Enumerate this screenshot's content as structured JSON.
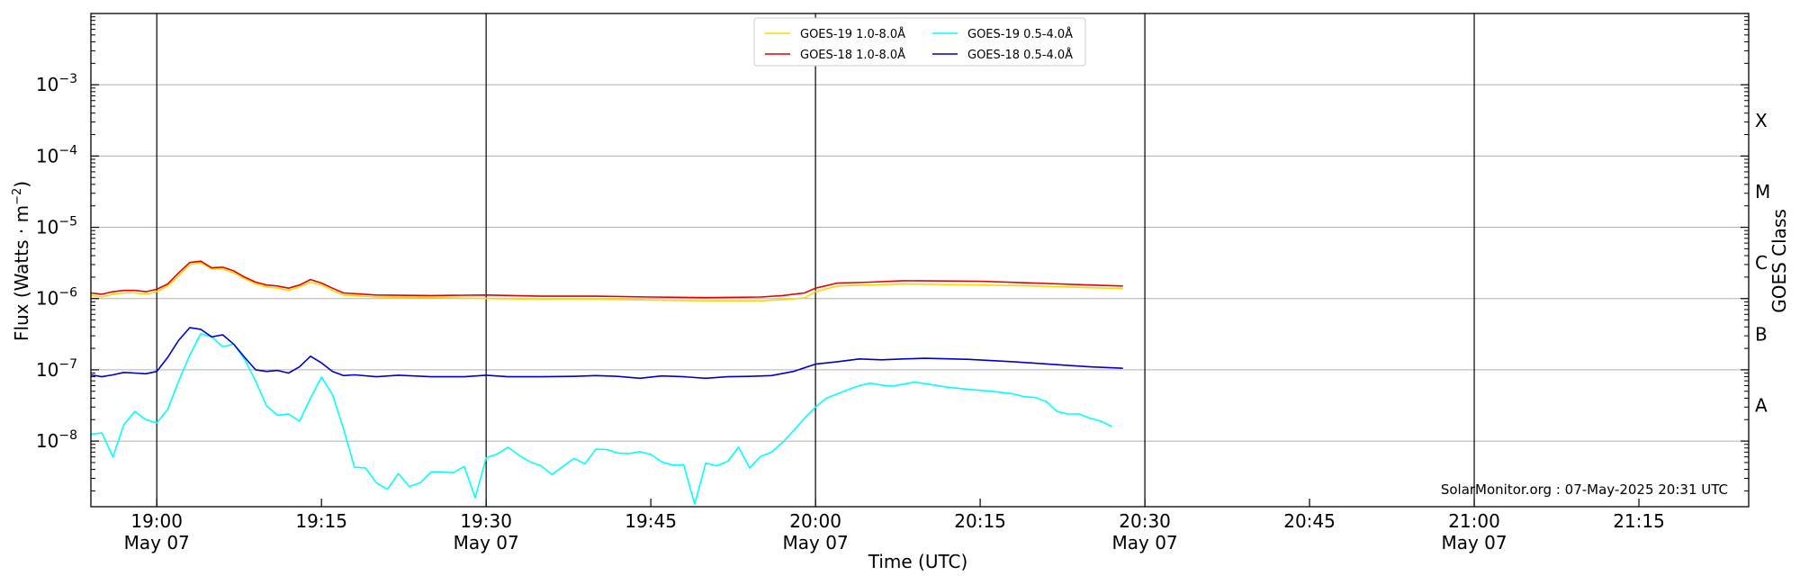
{
  "chart_data": {
    "type": "line",
    "xlabel": "Time (UTC)",
    "ylabel": "Flux (Watts · m",
    "ylabel_sup": "−2",
    "ylabel_close": ")",
    "right_label": "GOES Class",
    "xlim": [
      "18:54",
      "21:25"
    ],
    "ylim": [
      1.2e-09,
      0.01
    ],
    "yscale": "log",
    "grid": "horizontal at decades",
    "legend_position": "top-center",
    "credit": "SolarMonitor.org : 07-May-2025 20:31 UTC",
    "x_ticks": [
      {
        "t": "19:00",
        "time": "19:00",
        "date": "May 07"
      },
      {
        "t": "19:15",
        "time": "19:15",
        "date": ""
      },
      {
        "t": "19:30",
        "time": "19:30",
        "date": "May 07"
      },
      {
        "t": "19:45",
        "time": "19:45",
        "date": ""
      },
      {
        "t": "20:00",
        "time": "20:00",
        "date": "May 07"
      },
      {
        "t": "20:15",
        "time": "20:15",
        "date": ""
      },
      {
        "t": "20:30",
        "time": "20:30",
        "date": "May 07"
      },
      {
        "t": "20:45",
        "time": "20:45",
        "date": ""
      },
      {
        "t": "21:00",
        "time": "21:00",
        "date": "May 07"
      },
      {
        "t": "21:15",
        "time": "21:15",
        "date": ""
      }
    ],
    "vlines": [
      "19:00",
      "19:30",
      "20:00",
      "20:30",
      "21:00"
    ],
    "y_ticks": [
      {
        "value": 1e-08,
        "base": "10",
        "exp": "−8"
      },
      {
        "value": 1e-07,
        "base": "10",
        "exp": "−7"
      },
      {
        "value": 1e-06,
        "base": "10",
        "exp": "−6"
      },
      {
        "value": 1e-05,
        "base": "10",
        "exp": "−5"
      },
      {
        "value": 0.0001,
        "base": "10",
        "exp": "−4"
      },
      {
        "value": 0.001,
        "base": "10",
        "exp": "−3"
      }
    ],
    "goes_classes": [
      {
        "label": "A",
        "value": 3.16e-08
      },
      {
        "label": "B",
        "value": 3.16e-07
      },
      {
        "label": "C",
        "value": 3.16e-06
      },
      {
        "label": "M",
        "value": 3.16e-05
      },
      {
        "label": "X",
        "value": 0.000316
      }
    ],
    "series": [
      {
        "name": "GOES-19 1.0-8.0Å",
        "color": "#ffd700",
        "x": [
          "18:54",
          "18:55",
          "18:56",
          "18:57",
          "18:58",
          "18:59",
          "19:00",
          "19:01",
          "19:02",
          "19:03",
          "19:04",
          "19:05",
          "19:06",
          "19:07",
          "19:08",
          "19:09",
          "19:10",
          "19:11",
          "19:12",
          "19:13",
          "19:14",
          "19:15",
          "19:16",
          "19:17",
          "19:20",
          "19:25",
          "19:30",
          "19:35",
          "19:40",
          "19:45",
          "19:50",
          "19:55",
          "19:57",
          "19:59",
          "20:00",
          "20:02",
          "20:05",
          "20:08",
          "20:15",
          "20:20",
          "20:25",
          "20:28"
        ],
        "y": [
          1.1e-06,
          1.05e-06,
          1.15e-06,
          1.2e-06,
          1.2e-06,
          1.15e-06,
          1.25e-06,
          1.5e-06,
          2.1e-06,
          3e-06,
          3.2e-06,
          2.6e-06,
          2.6e-06,
          2.3e-06,
          1.9e-06,
          1.6e-06,
          1.45e-06,
          1.4e-06,
          1.3e-06,
          1.45e-06,
          1.7e-06,
          1.55e-06,
          1.3e-06,
          1.12e-06,
          1.05e-06,
          1.03e-06,
          1e-06,
          9.8e-07,
          9.8e-07,
          9.5e-07,
          9.3e-07,
          9.3e-07,
          9.6e-07,
          1.02e-06,
          1.25e-06,
          1.5e-06,
          1.55e-06,
          1.6e-06,
          1.55e-06,
          1.5e-06,
          1.42e-06,
          1.38e-06
        ]
      },
      {
        "name": "GOES-18 1.0-8.0Å",
        "color": "#e60000",
        "x": [
          "18:54",
          "18:55",
          "18:56",
          "18:57",
          "18:58",
          "18:59",
          "19:00",
          "19:01",
          "19:02",
          "19:03",
          "19:04",
          "19:05",
          "19:06",
          "19:07",
          "19:08",
          "19:09",
          "19:10",
          "19:11",
          "19:12",
          "19:13",
          "19:14",
          "19:15",
          "19:16",
          "19:17",
          "19:20",
          "19:25",
          "19:30",
          "19:35",
          "19:40",
          "19:45",
          "19:50",
          "19:55",
          "19:57",
          "19:59",
          "20:00",
          "20:02",
          "20:05",
          "20:08",
          "20:15",
          "20:20",
          "20:25",
          "20:28"
        ],
        "y": [
          1.2e-06,
          1.15e-06,
          1.25e-06,
          1.3e-06,
          1.3e-06,
          1.25e-06,
          1.35e-06,
          1.6e-06,
          2.3e-06,
          3.2e-06,
          3.35e-06,
          2.7e-06,
          2.75e-06,
          2.45e-06,
          2e-06,
          1.7e-06,
          1.55e-06,
          1.5e-06,
          1.4e-06,
          1.55e-06,
          1.85e-06,
          1.65e-06,
          1.4e-06,
          1.2e-06,
          1.12e-06,
          1.1e-06,
          1.12e-06,
          1.08e-06,
          1.08e-06,
          1.05e-06,
          1.03e-06,
          1.05e-06,
          1.1e-06,
          1.2e-06,
          1.4e-06,
          1.65e-06,
          1.7e-06,
          1.78e-06,
          1.75e-06,
          1.65e-06,
          1.55e-06,
          1.5e-06
        ]
      },
      {
        "name": "GOES-19 0.5-4.0Å",
        "color": "#00ffff",
        "x": [
          "18:54",
          "18:55",
          "18:56",
          "18:57",
          "18:58",
          "18:59",
          "19:00",
          "19:01",
          "19:02",
          "19:03",
          "19:04",
          "19:05",
          "19:06",
          "19:07",
          "19:08",
          "19:09",
          "19:10",
          "19:11",
          "19:12",
          "19:13",
          "19:14",
          "19:15",
          "19:16",
          "19:17",
          "19:18",
          "19:19",
          "19:20",
          "19:21",
          "19:22",
          "19:23",
          "19:24",
          "19:25",
          "19:26",
          "19:27",
          "19:28",
          "19:29",
          "19:30",
          "19:31",
          "19:32",
          "19:33",
          "19:34",
          "19:35",
          "19:36",
          "19:37",
          "19:38",
          "19:39",
          "19:40",
          "19:41",
          "19:42",
          "19:43",
          "19:44",
          "19:45",
          "19:46",
          "19:47",
          "19:48",
          "19:49",
          "19:50",
          "19:51",
          "19:52",
          "19:53",
          "19:54",
          "19:55",
          "19:56",
          "19:57",
          "19:58",
          "19:59",
          "20:00",
          "20:01",
          "20:02",
          "20:03",
          "20:04",
          "20:05",
          "20:06",
          "20:07",
          "20:08",
          "20:09",
          "20:10",
          "20:12",
          "20:14",
          "20:16",
          "20:18",
          "20:19",
          "20:20",
          "20:21",
          "20:22",
          "20:23",
          "20:24",
          "20:25",
          "20:26",
          "20:27"
        ],
        "y": [
          1.25e-08,
          1.3e-08,
          6e-09,
          1.7e-08,
          2.6e-08,
          2e-08,
          1.8e-08,
          2.8e-08,
          7e-08,
          1.6e-07,
          3.2e-07,
          2.9e-07,
          2.1e-07,
          2.3e-07,
          1.4e-07,
          7e-08,
          3.1e-08,
          2.3e-08,
          2.4e-08,
          1.9e-08,
          4e-08,
          7.9e-08,
          4.5e-08,
          1.5e-08,
          4.3e-09,
          4.2e-09,
          2.6e-09,
          2.1e-09,
          3.5e-09,
          2.3e-09,
          2.6e-09,
          3.7e-09,
          3.7e-09,
          3.6e-09,
          4.4e-09,
          1.6e-09,
          5.8e-09,
          6.6e-09,
          8.2e-09,
          6.3e-09,
          5.1e-09,
          4.5e-09,
          3.4e-09,
          4.4e-09,
          5.7e-09,
          4.8e-09,
          7.7e-09,
          7.6e-09,
          6.8e-09,
          6.7e-09,
          7.1e-09,
          6.5e-09,
          5.1e-09,
          4.6e-09,
          4.6e-09,
          1.3e-09,
          4.9e-09,
          4.5e-09,
          5.2e-09,
          8.2e-09,
          4.2e-09,
          6.1e-09,
          7e-09,
          9.6e-09,
          1.4e-08,
          2.1e-08,
          3e-08,
          4e-08,
          4.6e-08,
          5.3e-08,
          6e-08,
          6.5e-08,
          6.1e-08,
          5.9e-08,
          6.3e-08,
          6.7e-08,
          6.4e-08,
          5.7e-08,
          5.3e-08,
          5e-08,
          4.6e-08,
          4.2e-08,
          4.1e-08,
          3.6e-08,
          2.6e-08,
          2.4e-08,
          2.4e-08,
          2.1e-08,
          1.9e-08,
          1.6e-08
        ]
      },
      {
        "name": "GOES-18 0.5-4.0Å",
        "color": "#0000cc",
        "x": [
          "18:54",
          "18:55",
          "18:56",
          "18:57",
          "18:58",
          "18:59",
          "19:00",
          "19:01",
          "19:02",
          "19:03",
          "19:04",
          "19:05",
          "19:06",
          "19:07",
          "19:08",
          "19:09",
          "19:10",
          "19:11",
          "19:12",
          "19:13",
          "19:14",
          "19:15",
          "19:16",
          "19:17",
          "19:18",
          "19:20",
          "19:22",
          "19:25",
          "19:28",
          "19:30",
          "19:32",
          "19:35",
          "19:38",
          "19:40",
          "19:42",
          "19:44",
          "19:46",
          "19:48",
          "19:50",
          "19:52",
          "19:54",
          "19:56",
          "19:58",
          "20:00",
          "20:02",
          "20:04",
          "20:06",
          "20:08",
          "20:10",
          "20:14",
          "20:18",
          "20:22",
          "20:25",
          "20:28"
        ],
        "y": [
          8.5e-08,
          8e-08,
          8.5e-08,
          9.2e-08,
          9e-08,
          8.8e-08,
          9.5e-08,
          1.5e-07,
          2.6e-07,
          3.9e-07,
          3.7e-07,
          2.9e-07,
          3.1e-07,
          2.3e-07,
          1.5e-07,
          1e-07,
          9.5e-08,
          9.8e-08,
          9e-08,
          1.1e-07,
          1.55e-07,
          1.25e-07,
          9.5e-08,
          8.3e-08,
          8.5e-08,
          8e-08,
          8.4e-08,
          8e-08,
          8e-08,
          8.4e-08,
          8e-08,
          8e-08,
          8.1e-08,
          8.3e-08,
          8.1e-08,
          7.6e-08,
          8.2e-08,
          8e-08,
          7.6e-08,
          8e-08,
          8.1e-08,
          8.3e-08,
          9.5e-08,
          1.2e-07,
          1.3e-07,
          1.42e-07,
          1.38e-07,
          1.42e-07,
          1.45e-07,
          1.4e-07,
          1.3e-07,
          1.18e-07,
          1.1e-07,
          1.05e-07
        ]
      }
    ]
  }
}
